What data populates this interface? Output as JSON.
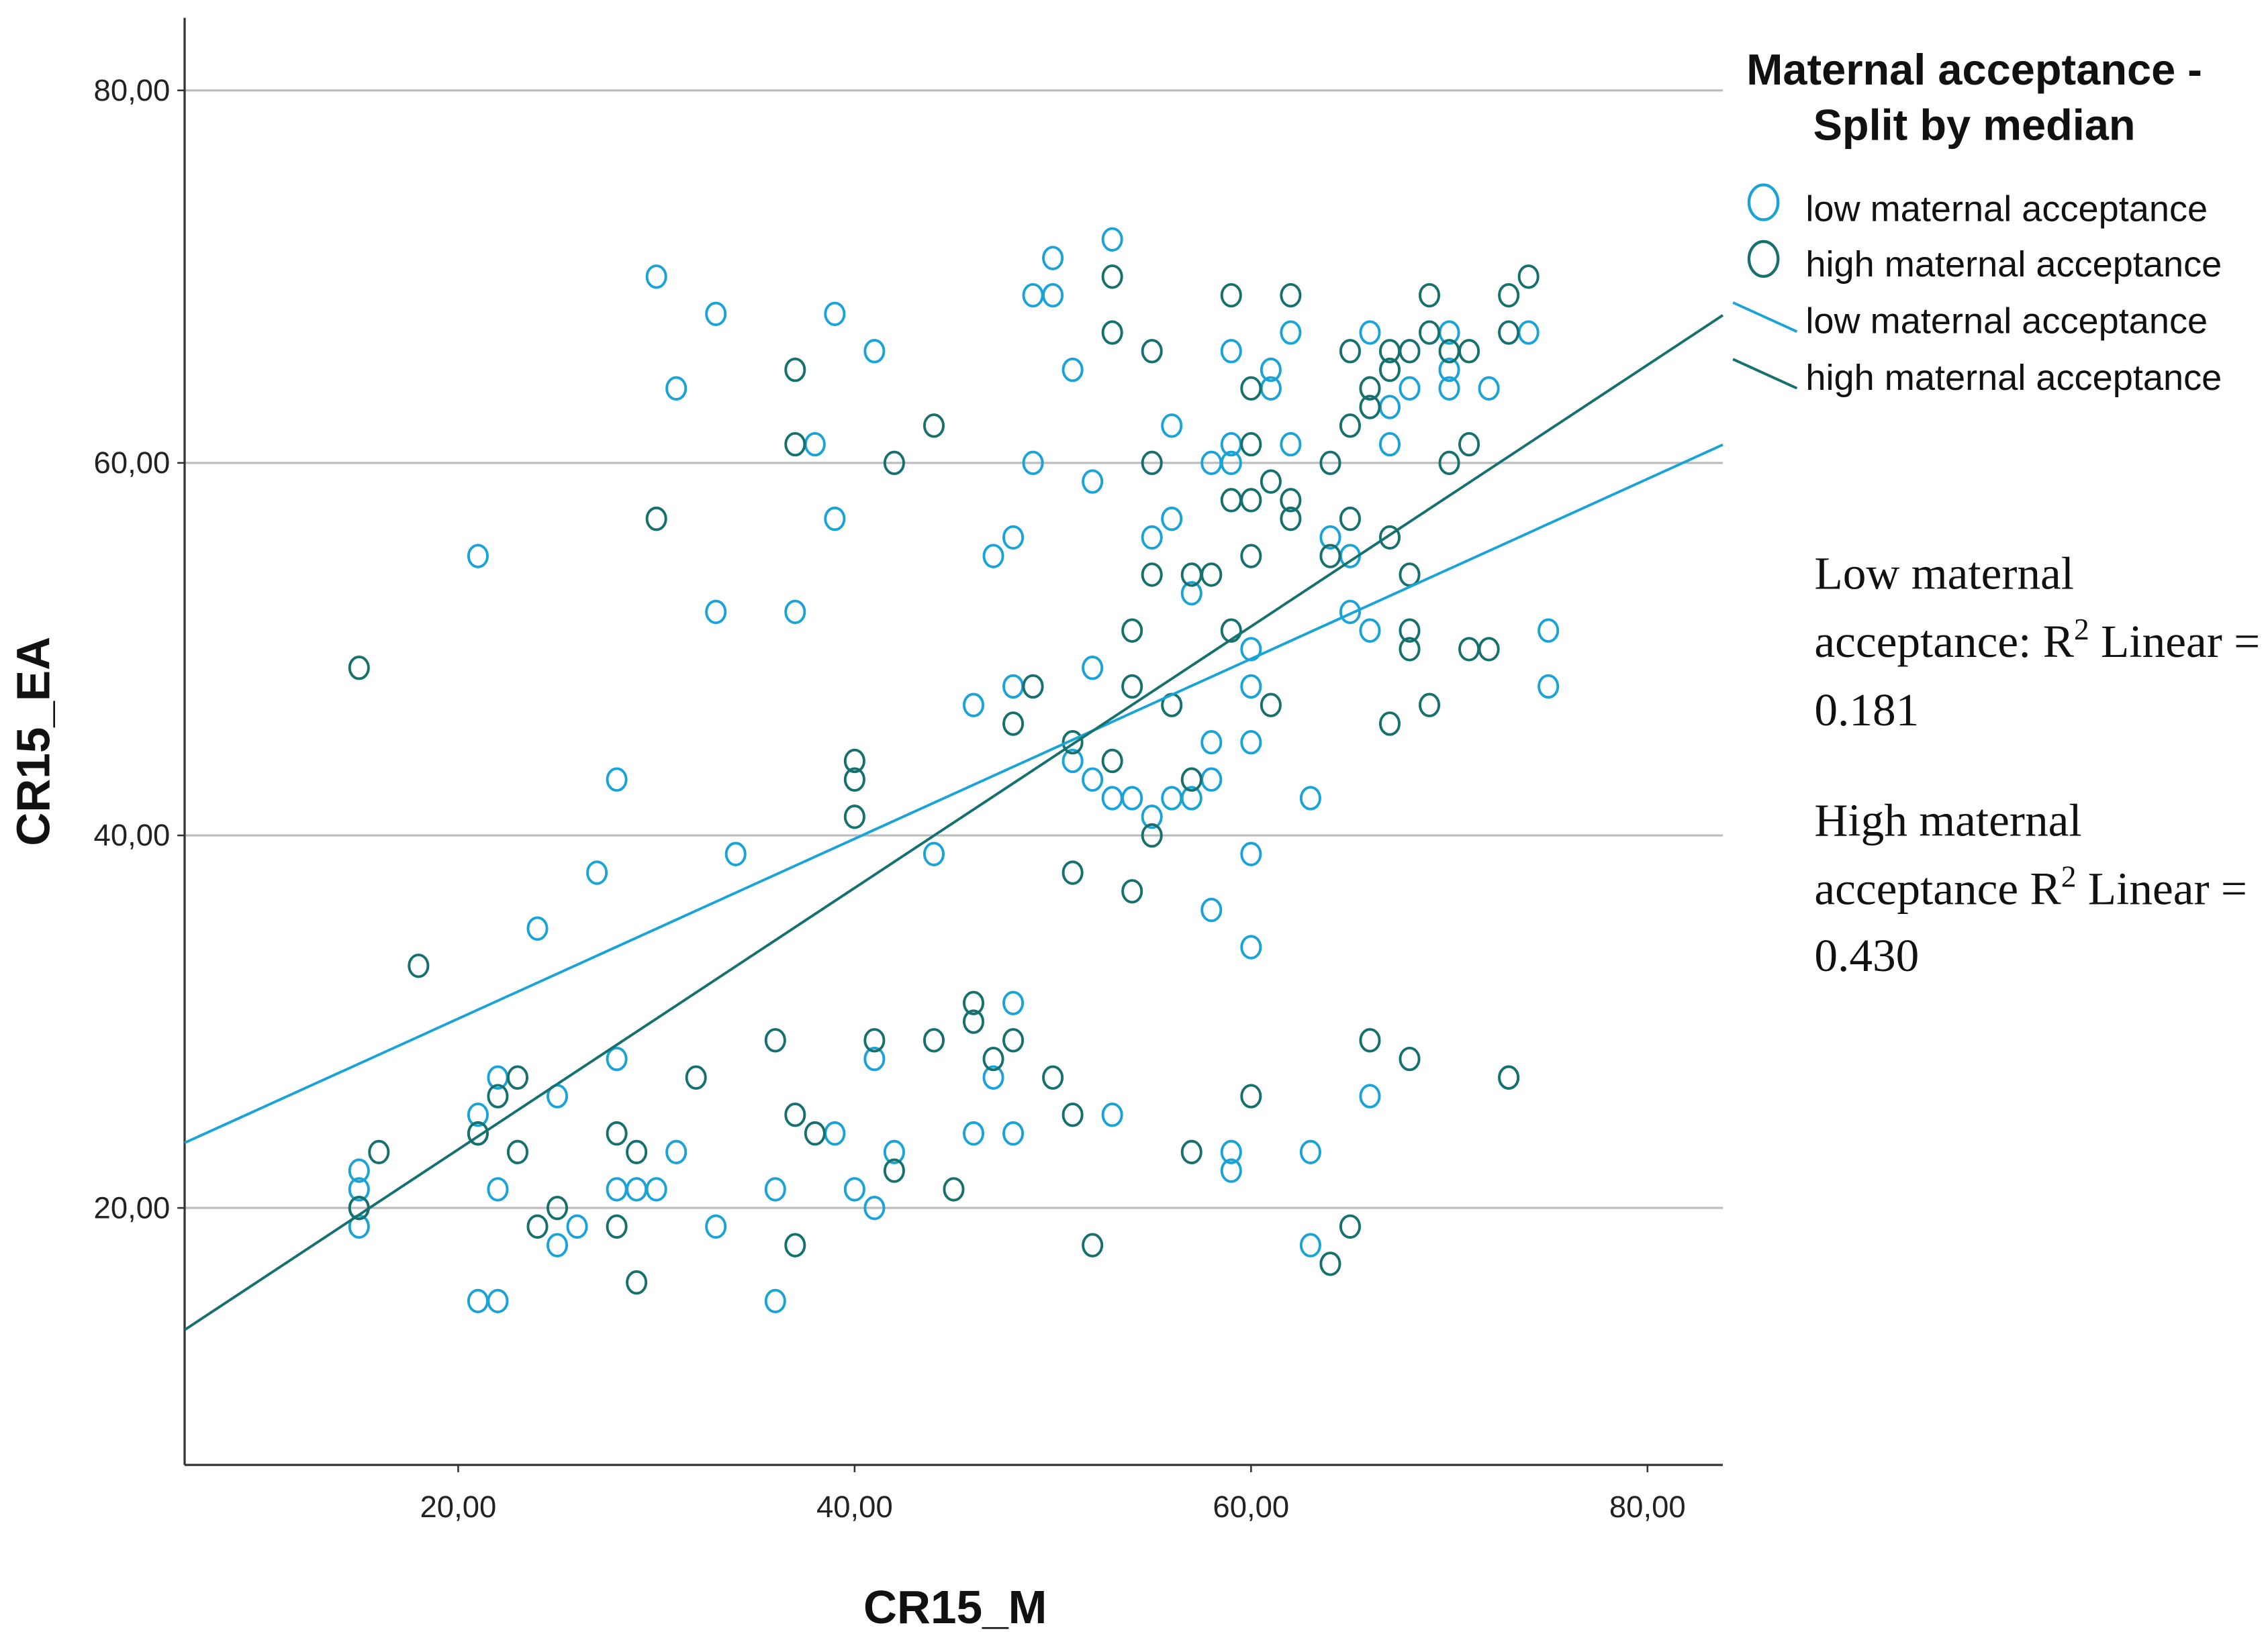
{
  "chart_data": {
    "type": "scatter",
    "title": "",
    "xlabel": "CR15_M",
    "ylabel": "CR15_EA",
    "xlim": [
      6.2,
      83.8
    ],
    "ylim": [
      6.2,
      83.9
    ],
    "xticks": [
      20,
      40,
      60,
      80
    ],
    "yticks": [
      20,
      40,
      60,
      80
    ],
    "xtick_labels": [
      "20,00",
      "40,00",
      "60,00",
      "80,00"
    ],
    "ytick_labels": [
      "20,00",
      "40,00",
      "60,00",
      "80,00"
    ],
    "grid": "horizontal",
    "legend": {
      "placement": "top-right",
      "title_line1": "Maternal acceptance -",
      "title_line2": "Split by median",
      "entries": [
        "low maternal acceptance",
        "high maternal acceptance",
        "low maternal acceptance",
        "high maternal acceptance"
      ]
    },
    "series": [
      {
        "name": "low maternal acceptance",
        "color": "#1aa3d6",
        "points": [
          [
            15,
            22
          ],
          [
            15,
            21
          ],
          [
            15,
            20
          ],
          [
            15,
            19
          ],
          [
            21,
            55
          ],
          [
            21,
            25
          ],
          [
            21,
            24
          ],
          [
            21,
            15
          ],
          [
            22,
            27
          ],
          [
            22,
            21
          ],
          [
            22,
            15
          ],
          [
            24,
            35
          ],
          [
            25,
            26
          ],
          [
            25,
            18
          ],
          [
            26,
            19
          ],
          [
            27,
            38
          ],
          [
            28,
            43
          ],
          [
            28,
            28
          ],
          [
            28,
            21
          ],
          [
            29,
            21
          ],
          [
            30,
            70
          ],
          [
            30,
            21
          ],
          [
            31,
            64
          ],
          [
            31,
            23
          ],
          [
            33,
            68
          ],
          [
            33,
            52
          ],
          [
            33,
            19
          ],
          [
            34,
            39
          ],
          [
            36,
            15
          ],
          [
            36,
            21
          ],
          [
            37,
            52
          ],
          [
            38,
            61
          ],
          [
            39,
            68
          ],
          [
            39,
            57
          ],
          [
            39,
            24
          ],
          [
            40,
            21
          ],
          [
            41,
            66
          ],
          [
            41,
            28
          ],
          [
            41,
            20
          ],
          [
            42,
            23
          ],
          [
            44,
            39
          ],
          [
            46,
            47
          ],
          [
            46,
            24
          ],
          [
            47,
            55
          ],
          [
            47,
            27
          ],
          [
            48,
            56
          ],
          [
            48,
            48
          ],
          [
            48,
            31
          ],
          [
            48,
            24
          ],
          [
            49,
            69
          ],
          [
            49,
            60
          ],
          [
            50,
            71
          ],
          [
            50,
            69
          ],
          [
            51,
            65
          ],
          [
            51,
            44
          ],
          [
            52,
            59
          ],
          [
            52,
            49
          ],
          [
            52,
            43
          ],
          [
            53,
            72
          ],
          [
            53,
            42
          ],
          [
            53,
            25
          ],
          [
            54,
            42
          ],
          [
            55,
            56
          ],
          [
            55,
            41
          ],
          [
            56,
            62
          ],
          [
            56,
            57
          ],
          [
            56,
            42
          ],
          [
            57,
            53
          ],
          [
            57,
            42
          ],
          [
            58,
            60
          ],
          [
            58,
            45
          ],
          [
            58,
            43
          ],
          [
            58,
            36
          ],
          [
            59,
            66
          ],
          [
            59,
            61
          ],
          [
            59,
            60
          ],
          [
            59,
            23
          ],
          [
            59,
            22
          ],
          [
            60,
            50
          ],
          [
            60,
            48
          ],
          [
            60,
            45
          ],
          [
            60,
            39
          ],
          [
            60,
            34
          ],
          [
            61,
            65
          ],
          [
            61,
            64
          ],
          [
            62,
            67
          ],
          [
            62,
            61
          ],
          [
            63,
            42
          ],
          [
            63,
            23
          ],
          [
            63,
            18
          ],
          [
            64,
            56
          ],
          [
            65,
            55
          ],
          [
            65,
            52
          ],
          [
            66,
            67
          ],
          [
            66,
            51
          ],
          [
            66,
            26
          ],
          [
            67,
            63
          ],
          [
            67,
            61
          ],
          [
            68,
            64
          ],
          [
            70,
            67
          ],
          [
            70,
            65
          ],
          [
            70,
            64
          ],
          [
            72,
            64
          ],
          [
            73,
            27
          ],
          [
            74,
            67
          ],
          [
            75,
            51
          ],
          [
            75,
            48
          ]
        ],
        "fit": {
          "slope": 0.483,
          "intercept": 20.5,
          "r2_linear": 0.181
        }
      },
      {
        "name": "high maternal acceptance",
        "color": "#16706e",
        "points": [
          [
            15,
            49
          ],
          [
            15,
            20
          ],
          [
            16,
            23
          ],
          [
            18,
            33
          ],
          [
            21,
            24
          ],
          [
            22,
            26
          ],
          [
            23,
            27
          ],
          [
            23,
            23
          ],
          [
            24,
            19
          ],
          [
            25,
            20
          ],
          [
            28,
            24
          ],
          [
            28,
            19
          ],
          [
            29,
            23
          ],
          [
            29,
            16
          ],
          [
            30,
            57
          ],
          [
            32,
            27
          ],
          [
            36,
            29
          ],
          [
            37,
            65
          ],
          [
            37,
            61
          ],
          [
            37,
            25
          ],
          [
            37,
            18
          ],
          [
            38,
            24
          ],
          [
            40,
            44
          ],
          [
            40,
            43
          ],
          [
            40,
            41
          ],
          [
            41,
            29
          ],
          [
            42,
            60
          ],
          [
            42,
            22
          ],
          [
            44,
            62
          ],
          [
            44,
            29
          ],
          [
            45,
            21
          ],
          [
            46,
            31
          ],
          [
            46,
            30
          ],
          [
            47,
            28
          ],
          [
            48,
            46
          ],
          [
            48,
            29
          ],
          [
            49,
            48
          ],
          [
            50,
            27
          ],
          [
            51,
            45
          ],
          [
            51,
            38
          ],
          [
            51,
            25
          ],
          [
            52,
            18
          ],
          [
            53,
            70
          ],
          [
            53,
            67
          ],
          [
            53,
            44
          ],
          [
            54,
            51
          ],
          [
            54,
            48
          ],
          [
            54,
            37
          ],
          [
            55,
            66
          ],
          [
            55,
            60
          ],
          [
            55,
            54
          ],
          [
            55,
            40
          ],
          [
            56,
            47
          ],
          [
            57,
            54
          ],
          [
            57,
            43
          ],
          [
            57,
            23
          ],
          [
            58,
            54
          ],
          [
            59,
            69
          ],
          [
            59,
            58
          ],
          [
            59,
            51
          ],
          [
            60,
            64
          ],
          [
            60,
            61
          ],
          [
            60,
            58
          ],
          [
            60,
            55
          ],
          [
            60,
            26
          ],
          [
            61,
            59
          ],
          [
            61,
            47
          ],
          [
            62,
            69
          ],
          [
            62,
            58
          ],
          [
            62,
            57
          ],
          [
            64,
            60
          ],
          [
            64,
            55
          ],
          [
            64,
            17
          ],
          [
            65,
            66
          ],
          [
            65,
            62
          ],
          [
            65,
            57
          ],
          [
            65,
            19
          ],
          [
            66,
            64
          ],
          [
            66,
            63
          ],
          [
            66,
            29
          ],
          [
            67,
            66
          ],
          [
            67,
            65
          ],
          [
            67,
            56
          ],
          [
            67,
            46
          ],
          [
            68,
            66
          ],
          [
            68,
            54
          ],
          [
            68,
            51
          ],
          [
            68,
            50
          ],
          [
            68,
            28
          ],
          [
            69,
            69
          ],
          [
            69,
            67
          ],
          [
            69,
            47
          ],
          [
            70,
            66
          ],
          [
            70,
            60
          ],
          [
            71,
            66
          ],
          [
            71,
            61
          ],
          [
            71,
            50
          ],
          [
            72,
            50
          ],
          [
            73,
            69
          ],
          [
            73,
            67
          ],
          [
            73,
            27
          ],
          [
            74,
            70
          ]
        ],
        "fit": {
          "slope": 0.702,
          "intercept": 9.1,
          "r2_linear": 0.43
        }
      }
    ],
    "annotations": {
      "low": {
        "line1": "Low maternal",
        "line2a": "acceptance: R",
        "sup": "2",
        "line2b": " Linear =",
        "value": "0.181"
      },
      "high": {
        "line1": "High maternal",
        "line2a": "acceptance R",
        "sup": "2",
        "line2b": " Linear =",
        "value": "0.430"
      }
    }
  }
}
